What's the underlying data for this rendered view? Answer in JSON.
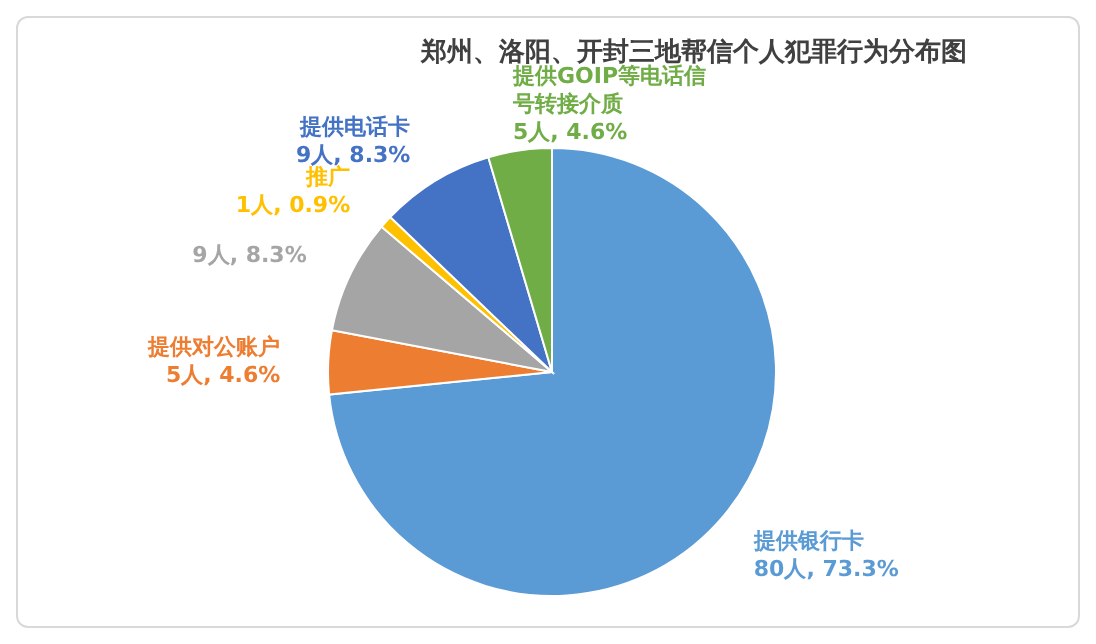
{
  "chart_data": {
    "type": "pie",
    "title": "郑州、洛阳、开封三地帮信个人犯罪行为分布图",
    "categories": [
      "提供银行卡",
      "提供对公账户",
      null,
      "推广",
      "提供电话卡",
      "提供GOIP等电话信号转接介质"
    ],
    "values": [
      80,
      5,
      9,
      1,
      9,
      5
    ],
    "value_labels": [
      "80人, 73.3%",
      "5人, 4.6%",
      "9人, 8.3%",
      "1人, 0.9%",
      "9人, 8.3%",
      "5人, 4.6%"
    ],
    "colors": [
      "#5b9bd5",
      "#ed7d31",
      "#a5a5a5",
      "#ffc000",
      "#4472c4",
      "#70ad47"
    ],
    "legend": false
  }
}
